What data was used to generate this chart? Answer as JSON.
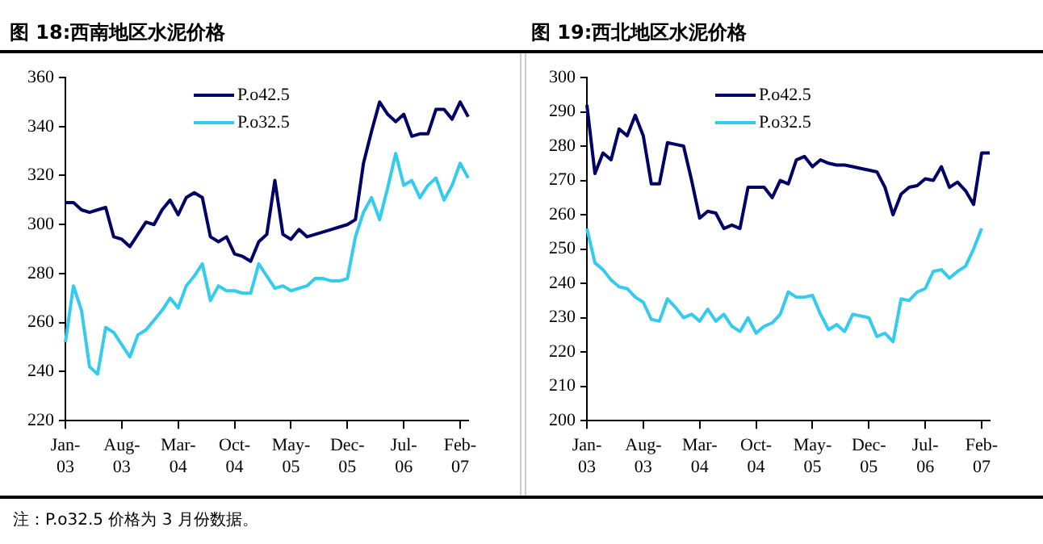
{
  "chart_data": [
    {
      "type": "line",
      "title": "图 18:西南地区水泥价格",
      "categories": [
        "Jan-03",
        null,
        null,
        null,
        null,
        null,
        null,
        "Aug-03",
        null,
        null,
        null,
        null,
        null,
        null,
        "Mar-04",
        null,
        null,
        null,
        null,
        null,
        null,
        "Oct-04",
        null,
        null,
        null,
        null,
        null,
        null,
        "May-05",
        null,
        null,
        null,
        null,
        null,
        null,
        "Dec-05",
        null,
        null,
        null,
        null,
        null,
        null,
        "Jul-06",
        null,
        null,
        null,
        null,
        null,
        null,
        "Feb-07",
        null
      ],
      "series": [
        {
          "name": "P.o42.5",
          "color": "#000066",
          "values": [
            309,
            309,
            306,
            305,
            306,
            307,
            295,
            294,
            291,
            296,
            301,
            300,
            306,
            310,
            304,
            311,
            313,
            311,
            295,
            293,
            295,
            288,
            287,
            285,
            293,
            296,
            318,
            296,
            294,
            298,
            295,
            296,
            297,
            298,
            299,
            300,
            302,
            325,
            338,
            350,
            345,
            342,
            345,
            336,
            337,
            337,
            347,
            347,
            343,
            350,
            344
          ]
        },
        {
          "name": "P.o32.5",
          "color": "#33ccee",
          "values": [
            252,
            275,
            265,
            242,
            239,
            258,
            256,
            251,
            246,
            255,
            257,
            261,
            265,
            270,
            266,
            275,
            279,
            284,
            269,
            275,
            273,
            273,
            272,
            272,
            284,
            279,
            274,
            275,
            273,
            274,
            275,
            278,
            278,
            277,
            277,
            278,
            295,
            305,
            311,
            302,
            315,
            329,
            316,
            318,
            311,
            316,
            319,
            310,
            316,
            325,
            319
          ]
        }
      ],
      "ylim": [
        220,
        360
      ],
      "yticks": [
        220,
        240,
        260,
        280,
        300,
        320,
        340,
        360
      ],
      "grid": false,
      "legend": "top",
      "marker": "none",
      "line_style": "solid",
      "annotations": [
        "注：P.o32.5 价格为 3 月份数据。"
      ]
    },
    {
      "type": "line",
      "title": "图 19:西北地区水泥价格",
      "categories": [
        "Jan-03",
        null,
        null,
        null,
        null,
        null,
        null,
        "Aug-03",
        null,
        null,
        null,
        null,
        null,
        null,
        "Mar-04",
        null,
        null,
        null,
        null,
        null,
        null,
        "Oct-04",
        null,
        null,
        null,
        null,
        null,
        null,
        "May-05",
        null,
        null,
        null,
        null,
        null,
        null,
        "Dec-05",
        null,
        null,
        null,
        null,
        null,
        null,
        "Jul-06",
        null,
        null,
        null,
        null,
        null,
        null,
        "Feb-07",
        null
      ],
      "series": [
        {
          "name": "P.o42.5",
          "color": "#000066",
          "values": [
            292,
            272,
            278,
            276,
            285,
            283,
            289,
            283,
            269,
            269,
            281,
            280.5,
            280,
            270,
            259,
            261,
            260.5,
            256,
            257,
            256,
            268,
            268,
            268,
            265,
            270,
            269,
            276,
            277,
            274,
            276,
            275,
            274.5,
            274.5,
            274,
            273.5,
            273,
            272.5,
            268,
            260,
            266,
            268,
            268.5,
            270.5,
            270,
            274,
            268,
            269.5,
            267,
            263,
            278,
            278
          ]
        },
        {
          "name": "P.o32.5",
          "color": "#33ccee",
          "values": [
            256,
            246,
            244,
            241,
            239,
            238.5,
            236,
            234.5,
            229.5,
            229,
            235.5,
            233,
            230,
            231,
            229,
            232.5,
            229,
            231,
            227.5,
            226,
            230,
            225.5,
            227.5,
            228.5,
            231,
            237.5,
            236,
            236,
            236.5,
            231,
            226.5,
            228,
            226,
            231,
            230.5,
            230,
            224.5,
            225.5,
            223,
            235.5,
            235,
            237.5,
            238.5,
            243.5,
            244,
            241.5,
            243.5,
            245,
            250,
            256,
            null
          ]
        }
      ],
      "ylim": [
        200,
        300
      ],
      "yticks": [
        200,
        210,
        220,
        230,
        240,
        250,
        260,
        270,
        280,
        290,
        300
      ],
      "grid": false,
      "legend": "top",
      "marker": "none",
      "line_style": "solid"
    }
  ]
}
